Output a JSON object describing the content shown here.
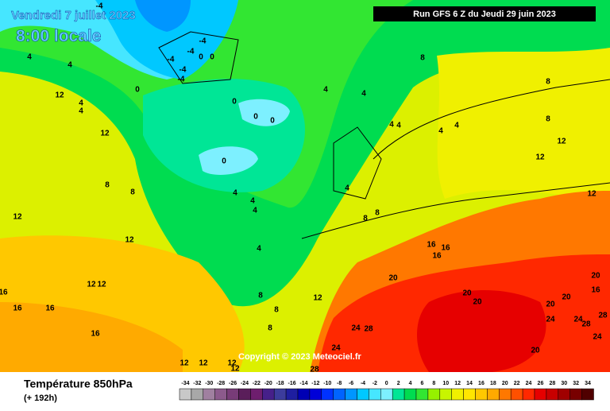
{
  "header": {
    "date": "Vendredi 7 juillet 2023",
    "time": "8:00 locale",
    "run": "Run GFS 6 Z du Jeudi 29 juin 2023"
  },
  "copyright": "Copyright © 2023 Meteociel.fr",
  "footer": {
    "title": "Température 850hPa",
    "subtitle": "(+ 192h)"
  },
  "legend": {
    "values": [
      -34,
      -32,
      -30,
      -28,
      -26,
      -24,
      -22,
      -20,
      -18,
      -16,
      -14,
      -12,
      -10,
      -8,
      -6,
      -4,
      -2,
      0,
      2,
      4,
      6,
      8,
      10,
      12,
      14,
      16,
      18,
      20,
      22,
      24,
      26,
      28,
      30,
      32,
      34
    ],
    "colors": [
      "#c8c8c8",
      "#a8a8a8",
      "#a080a0",
      "#8c5a8c",
      "#783c78",
      "#5a1e5a",
      "#6e1e6e",
      "#46208a",
      "#3c3c9c",
      "#1e1ea0",
      "#0000b4",
      "#0000d8",
      "#0032ff",
      "#0064ff",
      "#0096ff",
      "#00c8ff",
      "#46e6ff",
      "#7df0ff",
      "#00e696",
      "#00dc50",
      "#32e632",
      "#96f000",
      "#c8f500",
      "#f0f000",
      "#ffe600",
      "#ffc800",
      "#ffaa00",
      "#ff7800",
      "#ff5000",
      "#ff2800",
      "#e60000",
      "#c80000",
      "#a00000",
      "#780000",
      "#500000"
    ]
  },
  "map_labels": [
    -4,
    -4,
    -4,
    0,
    0,
    -4,
    -4,
    -4,
    4,
    4,
    0,
    12,
    4,
    4,
    12,
    8,
    4,
    4,
    0,
    0,
    0,
    0,
    4,
    4,
    4,
    4,
    8,
    8,
    12,
    12,
    8,
    8,
    12,
    4,
    4,
    4,
    4,
    8,
    8,
    12,
    16,
    16,
    16,
    12,
    12,
    4,
    20,
    20,
    16,
    20,
    20,
    20,
    20,
    8,
    8,
    12,
    16,
    16,
    16,
    28,
    24,
    28,
    24,
    16,
    8,
    24,
    28,
    24,
    24,
    20,
    12,
    12,
    12,
    12,
    28,
    12
  ]
}
